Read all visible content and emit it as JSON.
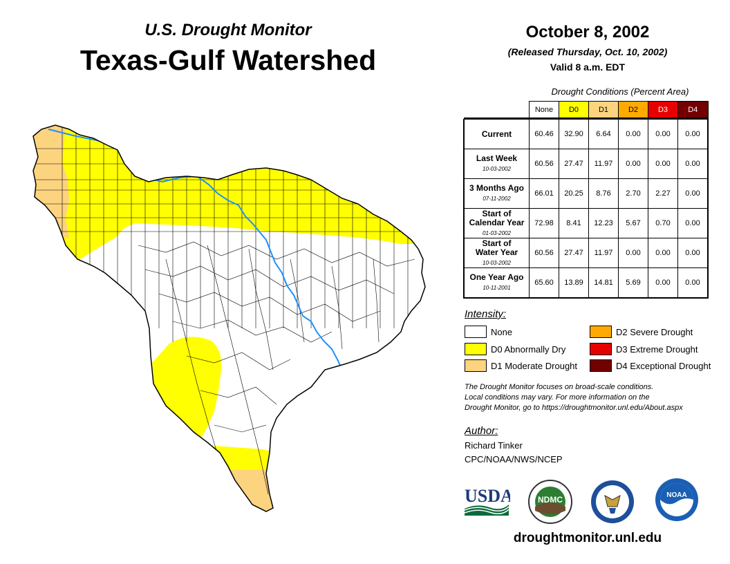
{
  "header": {
    "subtitle": "U.S. Drought Monitor",
    "title": "Texas-Gulf Watershed",
    "date": "October 8, 2002",
    "released": "(Released Thursday, Oct. 10, 2002)",
    "valid": "Valid 8 a.m. EDT"
  },
  "table": {
    "caption": "Drought Conditions (Percent Area)",
    "columns": [
      {
        "label": "None",
        "color": "#ffffff",
        "text_color": "#000000"
      },
      {
        "label": "D0",
        "color": "#ffff00",
        "text_color": "#000000"
      },
      {
        "label": "D1",
        "color": "#fcd37f",
        "text_color": "#000000"
      },
      {
        "label": "D2",
        "color": "#ffaa00",
        "text_color": "#000000"
      },
      {
        "label": "D3",
        "color": "#e60000",
        "text_color": "#ffffff"
      },
      {
        "label": "D4",
        "color": "#730000",
        "text_color": "#ffffff"
      }
    ],
    "rows": [
      {
        "label": "Current",
        "label2": "",
        "date": "",
        "values": [
          "60.46",
          "32.90",
          "6.64",
          "0.00",
          "0.00",
          "0.00"
        ]
      },
      {
        "label": "Last Week",
        "label2": "",
        "date": "10-03-2002",
        "values": [
          "60.56",
          "27.47",
          "11.97",
          "0.00",
          "0.00",
          "0.00"
        ]
      },
      {
        "label": "3 Months Ago",
        "label2": "",
        "date": "07-11-2002",
        "values": [
          "66.01",
          "20.25",
          "8.76",
          "2.70",
          "2.27",
          "0.00"
        ]
      },
      {
        "label": "Start of",
        "label2": "Calendar Year",
        "date": "01-03-2002",
        "values": [
          "72.98",
          "8.41",
          "12.23",
          "5.67",
          "0.70",
          "0.00"
        ]
      },
      {
        "label": "Start of",
        "label2": "Water Year",
        "date": "10-03-2002",
        "values": [
          "60.56",
          "27.47",
          "11.97",
          "0.00",
          "0.00",
          "0.00"
        ]
      },
      {
        "label": "One Year Ago",
        "label2": "",
        "date": "10-11-2001",
        "values": [
          "65.60",
          "13.89",
          "14.81",
          "5.69",
          "0.00",
          "0.00"
        ]
      }
    ]
  },
  "legend": {
    "title": "Intensity:",
    "items": [
      {
        "label": "None",
        "color": "#ffffff"
      },
      {
        "label": "D0 Abnormally Dry",
        "color": "#ffff00"
      },
      {
        "label": "D1 Moderate Drought",
        "color": "#fcd37f"
      },
      {
        "label": "D2 Severe Drought",
        "color": "#ffaa00"
      },
      {
        "label": "D3 Extreme Drought",
        "color": "#e60000"
      },
      {
        "label": "D4 Exceptional Drought",
        "color": "#730000"
      }
    ]
  },
  "note": {
    "line1": "The Drought Monitor focuses on broad-scale conditions.",
    "line2": "Local conditions may vary. For more information on the",
    "line3": "Drought Monitor, go to https://droughtmonitor.unl.edu/About.aspx"
  },
  "author": {
    "title": "Author:",
    "name": "Richard Tinker",
    "org": "CPC/NOAA/NWS/NCEP"
  },
  "logos": {
    "usda": "USDA",
    "ndmc": "NDMC",
    "noaa": "NOAA"
  },
  "footer": {
    "url": "droughtmonitor.unl.edu"
  },
  "map": {
    "colors": {
      "none": "#ffffff",
      "d0": "#ffff00",
      "d1": "#fcd37f",
      "river": "#1e90ff",
      "border": "#000000"
    }
  }
}
